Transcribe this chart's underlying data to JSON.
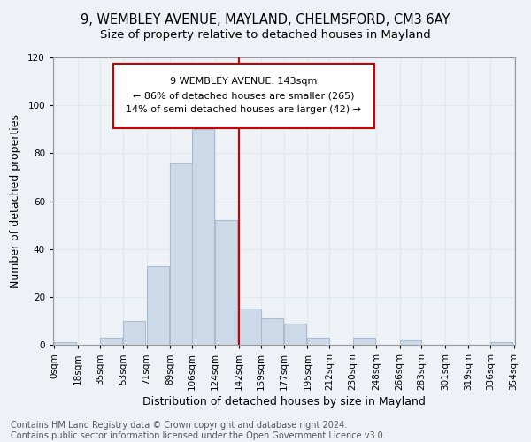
{
  "title_line1": "9, WEMBLEY AVENUE, MAYLAND, CHELMSFORD, CM3 6AY",
  "title_line2": "Size of property relative to detached houses in Mayland",
  "xlabel": "Distribution of detached houses by size in Mayland",
  "ylabel": "Number of detached properties",
  "footnote": "Contains HM Land Registry data © Crown copyright and database right 2024.\nContains public sector information licensed under the Open Government Licence v3.0.",
  "annotation_title": "9 WEMBLEY AVENUE: 143sqm",
  "annotation_line1": "← 86% of detached houses are smaller (265)",
  "annotation_line2": "14% of semi-detached houses are larger (42) →",
  "bar_left_edges": [
    0,
    18,
    35,
    53,
    71,
    89,
    106,
    124,
    142,
    159,
    177,
    195,
    212,
    230,
    248,
    266,
    283,
    301,
    319,
    336
  ],
  "bar_heights": [
    1,
    0,
    3,
    10,
    33,
    76,
    90,
    52,
    15,
    11,
    9,
    3,
    0,
    3,
    0,
    2,
    0,
    0,
    0,
    1
  ],
  "bin_width": 17,
  "bar_color": "#ccd9e8",
  "bar_edgecolor": "#aabcce",
  "vline_color": "#cc0000",
  "vline_x": 142,
  "annotation_box_color": "#cc0000",
  "ylim": [
    0,
    120
  ],
  "xlim": [
    -1,
    355
  ],
  "tick_labels": [
    "0sqm",
    "18sqm",
    "35sqm",
    "53sqm",
    "71sqm",
    "89sqm",
    "106sqm",
    "124sqm",
    "142sqm",
    "159sqm",
    "177sqm",
    "195sqm",
    "212sqm",
    "230sqm",
    "248sqm",
    "266sqm",
    "283sqm",
    "301sqm",
    "319sqm",
    "336sqm",
    "354sqm"
  ],
  "tick_positions": [
    0,
    18,
    35,
    53,
    71,
    89,
    106,
    124,
    142,
    159,
    177,
    195,
    212,
    230,
    248,
    266,
    283,
    301,
    319,
    336,
    354
  ],
  "grid_color": "#dde8f0",
  "title_fontsize": 10.5,
  "subtitle_fontsize": 9.5,
  "axis_label_fontsize": 9,
  "tick_fontsize": 7.5,
  "annotation_fontsize": 8,
  "footnote_fontsize": 7,
  "bg_color": "#eef2f7"
}
